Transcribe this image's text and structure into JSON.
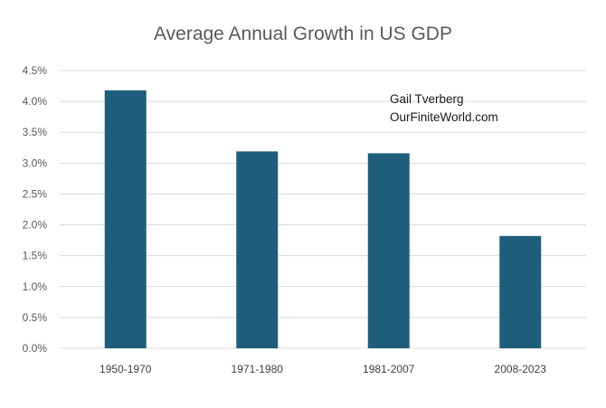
{
  "chart_data": {
    "type": "bar",
    "title": "Average Annual Growth in US GDP",
    "categories": [
      "1950-1970",
      "1971-1980",
      "1981-2007",
      "2008-2023"
    ],
    "values": [
      4.18,
      3.19,
      3.16,
      1.82
    ],
    "value_format": "percent",
    "ylim": [
      0,
      4.5
    ],
    "y_ticks": [
      0,
      0.5,
      1.0,
      1.5,
      2.0,
      2.5,
      3.0,
      3.5,
      4.0,
      4.5
    ],
    "y_tick_labels": [
      "0.0%",
      "0.5%",
      "1.0%",
      "1.5%",
      "2.0%",
      "2.5%",
      "3.0%",
      "3.5%",
      "4.0%",
      "4.5%"
    ],
    "grid": true,
    "legend": "none",
    "bar_color": "#1f5e7a",
    "annotation": {
      "line1": "Gail Tverberg",
      "line2": "OurFiniteWorld.com"
    }
  }
}
